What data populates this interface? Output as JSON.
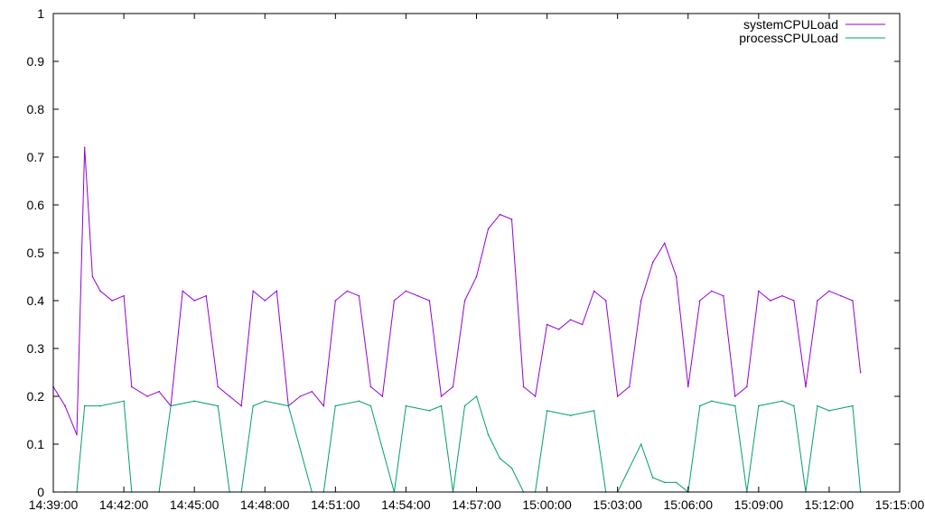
{
  "chart_data": {
    "type": "line",
    "x_tick_labels": [
      "14:39:00",
      "14:42:00",
      "14:45:00",
      "14:48:00",
      "14:51:00",
      "14:54:00",
      "14:57:00",
      "15:00:00",
      "15:03:00",
      "15:06:00",
      "15:09:00",
      "15:12:00",
      "15:15:00"
    ],
    "y_tick_labels": [
      "0",
      "0.1",
      "0.2",
      "0.3",
      "0.4",
      "0.5",
      "0.6",
      "0.7",
      "0.8",
      "0.9",
      "1"
    ],
    "xlim": [
      "14:39:00",
      "15:15:00"
    ],
    "ylim": [
      0,
      1
    ],
    "grid": false,
    "legend_position": "top-right",
    "series": [
      {
        "name": "systemCPULoad",
        "color": "#9400d3",
        "points": [
          [
            "14:39:00",
            0.22
          ],
          [
            "14:39:30",
            0.18
          ],
          [
            "14:40:00",
            0.12
          ],
          [
            "14:40:20",
            0.72
          ],
          [
            "14:40:40",
            0.45
          ],
          [
            "14:41:00",
            0.42
          ],
          [
            "14:41:30",
            0.4
          ],
          [
            "14:42:00",
            0.41
          ],
          [
            "14:42:20",
            0.22
          ],
          [
            "14:43:00",
            0.2
          ],
          [
            "14:43:30",
            0.21
          ],
          [
            "14:44:00",
            0.18
          ],
          [
            "14:44:30",
            0.42
          ],
          [
            "14:45:00",
            0.4
          ],
          [
            "14:45:30",
            0.41
          ],
          [
            "14:46:00",
            0.22
          ],
          [
            "14:46:30",
            0.2
          ],
          [
            "14:47:00",
            0.18
          ],
          [
            "14:47:30",
            0.42
          ],
          [
            "14:48:00",
            0.4
          ],
          [
            "14:48:30",
            0.42
          ],
          [
            "14:49:00",
            0.18
          ],
          [
            "14:49:30",
            0.2
          ],
          [
            "14:50:00",
            0.21
          ],
          [
            "14:50:30",
            0.18
          ],
          [
            "14:51:00",
            0.4
          ],
          [
            "14:51:30",
            0.42
          ],
          [
            "14:52:00",
            0.41
          ],
          [
            "14:52:30",
            0.22
          ],
          [
            "14:53:00",
            0.2
          ],
          [
            "14:53:30",
            0.4
          ],
          [
            "14:54:00",
            0.42
          ],
          [
            "14:54:30",
            0.41
          ],
          [
            "14:55:00",
            0.4
          ],
          [
            "14:55:30",
            0.2
          ],
          [
            "14:56:00",
            0.22
          ],
          [
            "14:56:30",
            0.4
          ],
          [
            "14:57:00",
            0.45
          ],
          [
            "14:57:30",
            0.55
          ],
          [
            "14:58:00",
            0.58
          ],
          [
            "14:58:30",
            0.57
          ],
          [
            "14:59:00",
            0.22
          ],
          [
            "14:59:30",
            0.2
          ],
          [
            "15:00:00",
            0.35
          ],
          [
            "15:00:30",
            0.34
          ],
          [
            "15:01:00",
            0.36
          ],
          [
            "15:01:30",
            0.35
          ],
          [
            "15:02:00",
            0.42
          ],
          [
            "15:02:30",
            0.4
          ],
          [
            "15:03:00",
            0.2
          ],
          [
            "15:03:30",
            0.22
          ],
          [
            "15:04:00",
            0.4
          ],
          [
            "15:04:30",
            0.48
          ],
          [
            "15:05:00",
            0.52
          ],
          [
            "15:05:30",
            0.45
          ],
          [
            "15:06:00",
            0.22
          ],
          [
            "15:06:30",
            0.4
          ],
          [
            "15:07:00",
            0.42
          ],
          [
            "15:07:30",
            0.41
          ],
          [
            "15:08:00",
            0.2
          ],
          [
            "15:08:30",
            0.22
          ],
          [
            "15:09:00",
            0.42
          ],
          [
            "15:09:30",
            0.4
          ],
          [
            "15:10:00",
            0.41
          ],
          [
            "15:10:30",
            0.4
          ],
          [
            "15:11:00",
            0.22
          ],
          [
            "15:11:30",
            0.4
          ],
          [
            "15:12:00",
            0.42
          ],
          [
            "15:12:30",
            0.41
          ],
          [
            "15:13:00",
            0.4
          ],
          [
            "15:13:20",
            0.25
          ]
        ]
      },
      {
        "name": "processCPULoad",
        "color": "#009e73",
        "points": [
          [
            "14:39:00",
            0.0
          ],
          [
            "14:39:30",
            0.0
          ],
          [
            "14:40:00",
            0.0
          ],
          [
            "14:40:20",
            0.18
          ],
          [
            "14:41:00",
            0.18
          ],
          [
            "14:42:00",
            0.19
          ],
          [
            "14:42:20",
            0.0
          ],
          [
            "14:43:30",
            0.0
          ],
          [
            "14:44:00",
            0.18
          ],
          [
            "14:45:00",
            0.19
          ],
          [
            "14:46:00",
            0.18
          ],
          [
            "14:46:30",
            0.0
          ],
          [
            "14:47:00",
            0.0
          ],
          [
            "14:47:30",
            0.18
          ],
          [
            "14:48:00",
            0.19
          ],
          [
            "14:49:00",
            0.18
          ],
          [
            "14:50:00",
            0.0
          ],
          [
            "14:50:30",
            0.0
          ],
          [
            "14:51:00",
            0.18
          ],
          [
            "14:52:00",
            0.19
          ],
          [
            "14:52:30",
            0.18
          ],
          [
            "14:53:30",
            0.0
          ],
          [
            "14:54:00",
            0.18
          ],
          [
            "14:55:00",
            0.17
          ],
          [
            "14:55:30",
            0.18
          ],
          [
            "14:56:00",
            0.0
          ],
          [
            "14:56:30",
            0.18
          ],
          [
            "14:57:00",
            0.2
          ],
          [
            "14:57:30",
            0.12
          ],
          [
            "14:58:00",
            0.07
          ],
          [
            "14:58:30",
            0.05
          ],
          [
            "14:59:00",
            0.0
          ],
          [
            "14:59:30",
            0.0
          ],
          [
            "15:00:00",
            0.17
          ],
          [
            "15:01:00",
            0.16
          ],
          [
            "15:02:00",
            0.17
          ],
          [
            "15:02:30",
            0.0
          ],
          [
            "15:03:00",
            0.0
          ],
          [
            "15:04:00",
            0.1
          ],
          [
            "15:04:30",
            0.03
          ],
          [
            "15:05:00",
            0.02
          ],
          [
            "15:05:30",
            0.02
          ],
          [
            "15:06:00",
            0.0
          ],
          [
            "15:06:30",
            0.18
          ],
          [
            "15:07:00",
            0.19
          ],
          [
            "15:08:00",
            0.18
          ],
          [
            "15:08:30",
            0.0
          ],
          [
            "15:09:00",
            0.18
          ],
          [
            "15:10:00",
            0.19
          ],
          [
            "15:10:30",
            0.18
          ],
          [
            "15:11:00",
            0.0
          ],
          [
            "15:11:30",
            0.18
          ],
          [
            "15:12:00",
            0.17
          ],
          [
            "15:13:00",
            0.18
          ],
          [
            "15:13:20",
            0.0
          ]
        ]
      }
    ]
  }
}
